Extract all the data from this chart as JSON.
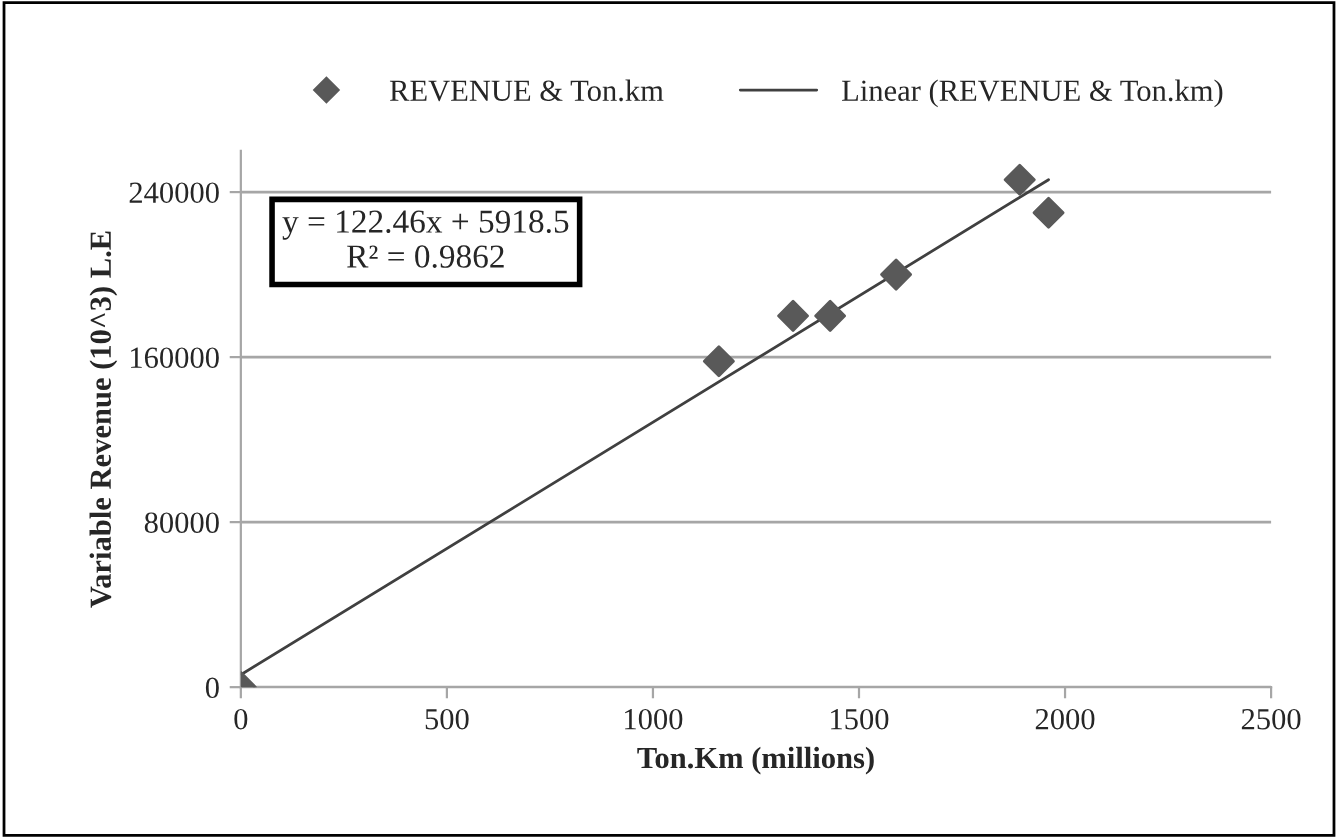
{
  "chart_data": {
    "type": "scatter",
    "xlabel": "Ton.Km (millions)",
    "ylabel": "Variable Revenue (10^3) L.E",
    "xlim": [
      0,
      2500
    ],
    "xticks": [
      0,
      500,
      1000,
      1500,
      2000,
      2500
    ],
    "ylim": [
      0,
      260000
    ],
    "yticks": [
      0,
      80000,
      160000,
      240000
    ],
    "grid": "y",
    "legend": "top",
    "marker": "diamond",
    "series": [
      {
        "name": "REVENUE & Ton.km",
        "color": "#595959",
        "x": [
          0,
          1160,
          1340,
          1430,
          1590,
          1890,
          1960
        ],
        "values": [
          0,
          158000,
          180000,
          180000,
          200000,
          246000,
          230000
        ]
      },
      {
        "name": "Linear (REVENUE & Ton.km)",
        "type": "line",
        "color": "#404040",
        "line_style": "solid",
        "marker": "none",
        "x": [
          0,
          1960
        ],
        "values": [
          6000,
          246000
        ]
      }
    ],
    "annotations": [
      "y = 122.46x + 5918.5\nR² = 0.9862"
    ]
  }
}
